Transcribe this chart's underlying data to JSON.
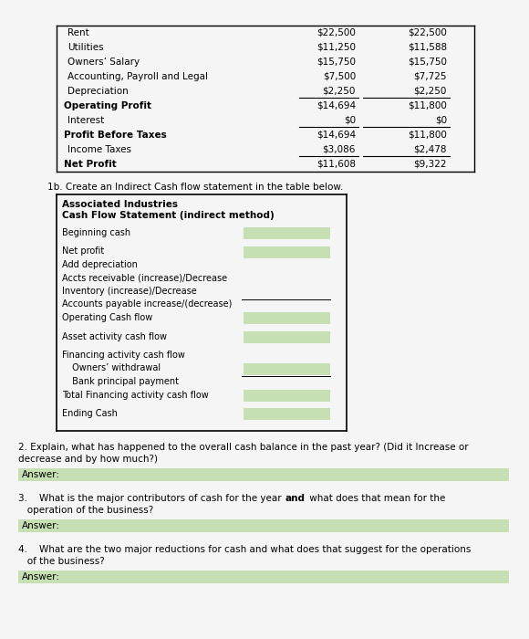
{
  "bg_color": "#f5f5f5",
  "top_table": {
    "rows": [
      {
        "label": "Rent",
        "col1": "$22,500",
        "col2": "$22,500",
        "bold": false,
        "underline_below": false,
        "indent": true
      },
      {
        "label": "Utilities",
        "col1": "$11,250",
        "col2": "$11,588",
        "bold": false,
        "underline_below": false,
        "indent": true
      },
      {
        "label": "Owners’ Salary",
        "col1": "$15,750",
        "col2": "$15,750",
        "bold": false,
        "underline_below": false,
        "indent": true
      },
      {
        "label": "Accounting, Payroll and Legal",
        "col1": "$7,500",
        "col2": "$7,725",
        "bold": false,
        "underline_below": false,
        "indent": true
      },
      {
        "label": "Depreciation",
        "col1": "$2,250",
        "col2": "$2,250",
        "bold": false,
        "underline_below": true,
        "indent": true
      },
      {
        "label": "Operating Profit",
        "col1": "$14,694",
        "col2": "$11,800",
        "bold": true,
        "underline_below": false,
        "indent": false
      },
      {
        "label": "Interest",
        "col1": "$0",
        "col2": "$0",
        "bold": false,
        "underline_below": true,
        "indent": true
      },
      {
        "label": "Profit Before Taxes",
        "col1": "$14,694",
        "col2": "$11,800",
        "bold": true,
        "underline_below": false,
        "indent": false
      },
      {
        "label": "Income Taxes",
        "col1": "$3,086",
        "col2": "$2,478",
        "bold": false,
        "underline_below": true,
        "indent": true
      },
      {
        "label": "Net Profit",
        "col1": "$11,608",
        "col2": "$9,322",
        "bold": true,
        "underline_below": false,
        "indent": false
      }
    ]
  },
  "instruction_1b": "1b. Create an Indirect Cash flow statement in the table below.",
  "cash_flow_table": {
    "title_line1": "Associated Industries",
    "title_line2": "Cash Flow Statement (indirect method)",
    "rows": [
      {
        "label": "Beginning cash",
        "has_box": true,
        "indent": 0,
        "spacer_after": true,
        "underline_above": false
      },
      {
        "label": "Net profit",
        "has_box": true,
        "indent": 0,
        "spacer_after": false,
        "underline_above": false
      },
      {
        "label": "Add depreciation",
        "has_box": false,
        "indent": 0,
        "spacer_after": false,
        "underline_above": false
      },
      {
        "label": "Accts receivable (increase)/Decrease",
        "has_box": false,
        "indent": 0,
        "spacer_after": false,
        "underline_above": false
      },
      {
        "label": "Inventory (increase)/Decrease",
        "has_box": false,
        "indent": 0,
        "spacer_after": false,
        "underline_above": false
      },
      {
        "label": "Accounts payable increase/(decrease)",
        "has_box": false,
        "indent": 0,
        "spacer_after": false,
        "underline_above": true
      },
      {
        "label": "Operating Cash flow",
        "has_box": true,
        "indent": 0,
        "spacer_after": true,
        "underline_above": false
      },
      {
        "label": "Asset activity cash flow",
        "has_box": true,
        "indent": 0,
        "spacer_after": true,
        "underline_above": false
      },
      {
        "label": "Financing activity cash flow",
        "has_box": false,
        "indent": 0,
        "spacer_after": false,
        "underline_above": false
      },
      {
        "label": " Owners’ withdrawal",
        "has_box": true,
        "indent": 1,
        "spacer_after": false,
        "underline_above": false
      },
      {
        "label": " Bank principal payment",
        "has_box": false,
        "indent": 1,
        "spacer_after": false,
        "underline_above": true
      },
      {
        "label": "Total Financing activity cash flow",
        "has_box": true,
        "indent": 0,
        "spacer_after": true,
        "underline_above": false
      },
      {
        "label": "Ending Cash",
        "has_box": true,
        "indent": 0,
        "spacer_after": false,
        "underline_above": false
      }
    ],
    "box_color": "#c6e0b4"
  },
  "questions": [
    {
      "number": "2.",
      "lines": [
        "Explain, what has happened to the overall cash balance in the past year? (Did it Increase or",
        "decrease and by how much?)"
      ],
      "answer_label": "Answer:",
      "answer_bg": "#c6e0b4"
    },
    {
      "number": "3.",
      "lines": [
        "   What is the major contributors of cash for the year {bold}and{/bold} what does that mean for the",
        "   operation of the business?"
      ],
      "answer_label": "Answer:",
      "answer_bg": "#c6e0b4"
    },
    {
      "number": "4.",
      "lines": [
        "   What are the two major reductions for cash and what does that suggest for the operations",
        "   of the business?"
      ],
      "answer_label": "Answer:",
      "answer_bg": "#c6e0b4"
    }
  ],
  "font_size": 7.5,
  "title_font_size": 7.5
}
